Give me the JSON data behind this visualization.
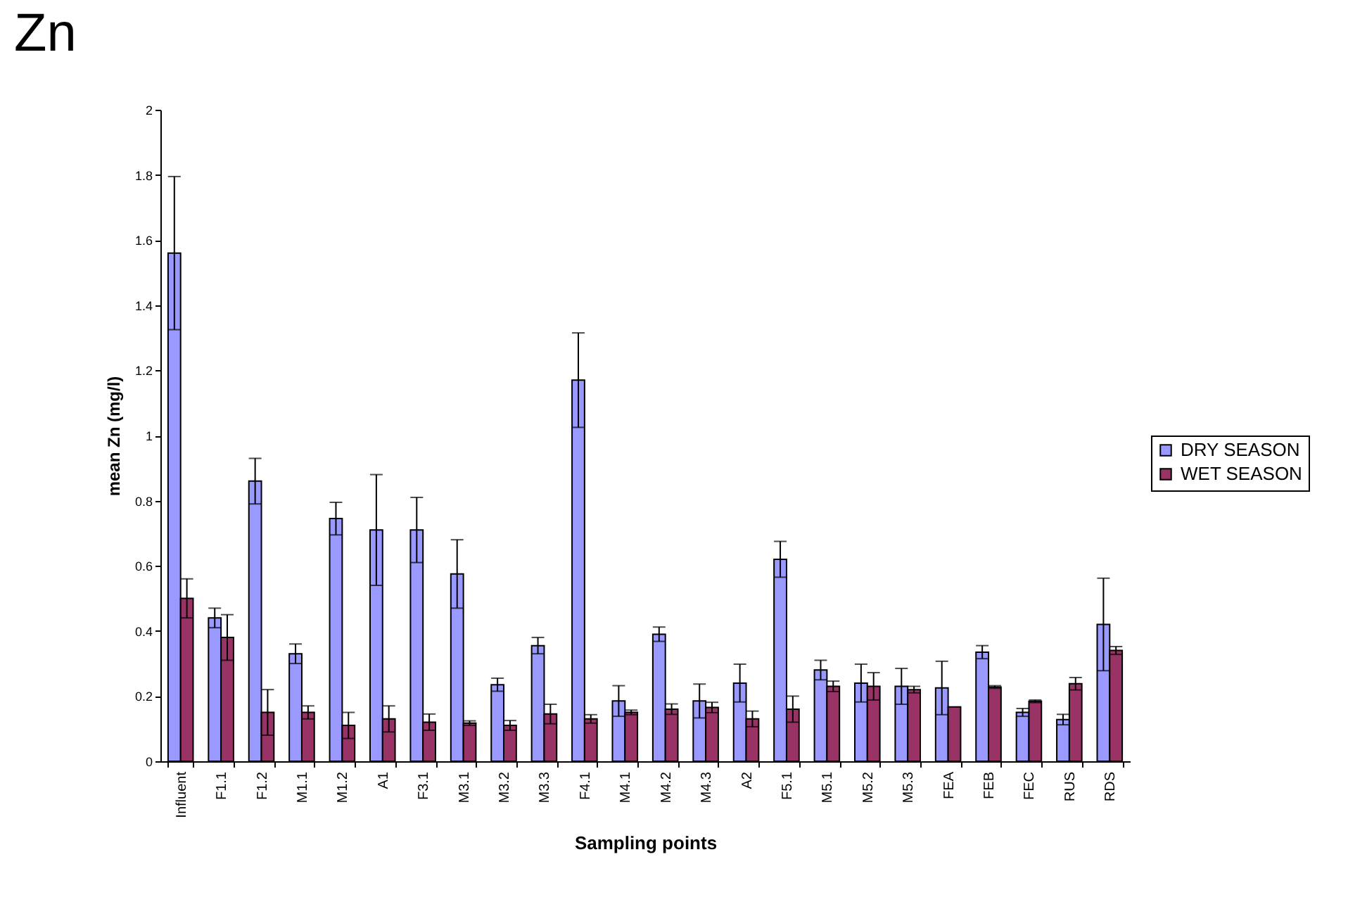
{
  "chart_data": {
    "type": "bar",
    "title": "Zn",
    "xlabel": "Sampling points",
    "ylabel": "mean Zn (mg/l)",
    "categories": [
      "Influent",
      "F1.1",
      "F1.2",
      "M1.1",
      "M1.2",
      "A1",
      "F3.1",
      "M3.1",
      "M3.2",
      "M3.3",
      "F4.1",
      "M4.1",
      "M4.2",
      "M4.3",
      "A2",
      "F5.1",
      "M5.1",
      "M5.2",
      "M5.3",
      "FEA",
      "FEB",
      "FEC",
      "RUS",
      "RDS"
    ],
    "series": [
      {
        "name": "DRY SEASON",
        "color": "#9999ff",
        "values": [
          1.56,
          0.44,
          0.86,
          0.33,
          0.745,
          0.71,
          0.71,
          0.575,
          0.235,
          0.355,
          1.17,
          0.185,
          0.39,
          0.185,
          0.24,
          0.62,
          0.28,
          0.24,
          0.23,
          0.225,
          0.335,
          0.15,
          0.128,
          0.42
        ],
        "errors": [
          0.235,
          0.03,
          0.07,
          0.03,
          0.05,
          0.17,
          0.1,
          0.105,
          0.02,
          0.025,
          0.145,
          0.047,
          0.022,
          0.052,
          0.058,
          0.055,
          0.03,
          0.058,
          0.055,
          0.082,
          0.02,
          0.012,
          0.016,
          0.142
        ]
      },
      {
        "name": "WET SEASON",
        "color": "#993366",
        "values": [
          0.5,
          0.38,
          0.15,
          0.15,
          0.11,
          0.13,
          0.12,
          0.117,
          0.11,
          0.145,
          0.13,
          0.15,
          0.16,
          0.165,
          0.13,
          0.16,
          0.23,
          0.23,
          0.22,
          0.167,
          0.228,
          0.184,
          0.238,
          0.34
        ],
        "errors": [
          0.06,
          0.07,
          0.07,
          0.02,
          0.04,
          0.04,
          0.025,
          0.007,
          0.015,
          0.03,
          0.013,
          0.007,
          0.016,
          0.016,
          0.024,
          0.04,
          0.016,
          0.042,
          0.01,
          null,
          0.004,
          0.004,
          0.019,
          0.012
        ]
      }
    ],
    "ylim": [
      0,
      2
    ],
    "yticks": [
      0,
      0.2,
      0.4,
      0.6,
      0.8,
      1,
      1.2,
      1.4,
      1.6,
      1.8,
      2
    ],
    "grid": false,
    "legend": "right"
  }
}
